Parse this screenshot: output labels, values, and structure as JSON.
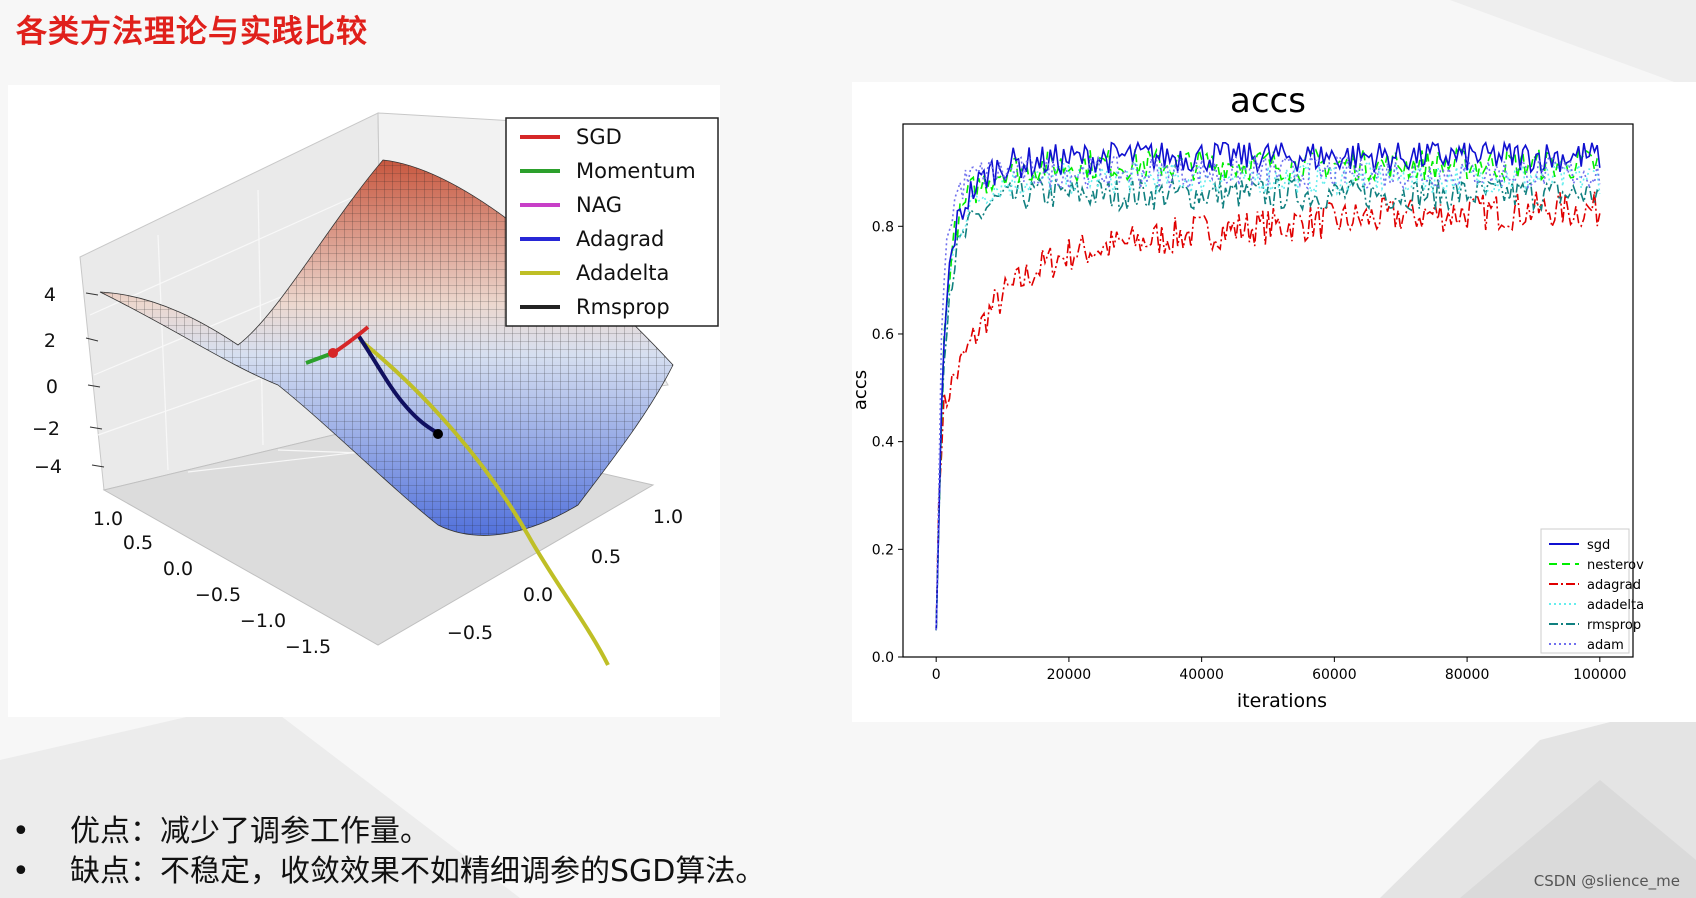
{
  "page": {
    "title": "各类方法理论与实践比较",
    "title_color": "#e0201b",
    "bullets": [
      {
        "marker": "•",
        "text": "优点：减少了调参工作量。"
      },
      {
        "marker": "•",
        "text": "缺点：不稳定，收敛效果不如精细调参的SGD算法。"
      }
    ],
    "watermark": "CSDN @slience_me"
  },
  "chart_data": [
    {
      "type": "surface3d",
      "zticks": [
        "4",
        "2",
        "0",
        "−2",
        "−4"
      ],
      "xticks": [
        "1.0",
        "0.5",
        "0.0",
        "−0.5",
        "−1.0",
        "−1.5"
      ],
      "yticks": [
        "1.0",
        "0.5",
        "0.0",
        "−0.5"
      ],
      "legend_position": "top-right",
      "series": [
        {
          "name": "SGD",
          "color": "#d62728"
        },
        {
          "name": "Momentum",
          "color": "#2ca02c"
        },
        {
          "name": "NAG",
          "color": "#c83fc8"
        },
        {
          "name": "Adagrad",
          "color": "#2727d6"
        },
        {
          "name": "Adadelta",
          "color": "#bfbf26"
        },
        {
          "name": "Rmsprop",
          "color": "#222222"
        }
      ],
      "surface_colors": {
        "high": "#c4492f",
        "mid": "#e6e2e0",
        "low": "#3c5fd8"
      }
    },
    {
      "type": "line",
      "title": "accs",
      "xlabel": "iterations",
      "ylabel": "accs",
      "xlim": [
        -5000,
        105000
      ],
      "ylim": [
        0,
        0.99
      ],
      "xticks": [
        0,
        20000,
        40000,
        60000,
        80000,
        100000
      ],
      "yticks": [
        0.0,
        0.2,
        0.4,
        0.6,
        0.8
      ],
      "grid": false,
      "legend_position": "lower-right",
      "series": [
        {
          "name": "sgd",
          "color": "#1010d0",
          "dash": "",
          "x": [
            0,
            1000,
            2000,
            3000,
            5000,
            8000,
            10000,
            15000,
            20000,
            30000,
            40000,
            60000,
            80000,
            100000
          ],
          "y": [
            0.05,
            0.55,
            0.72,
            0.8,
            0.86,
            0.9,
            0.915,
            0.92,
            0.925,
            0.93,
            0.93,
            0.93,
            0.93,
            0.93
          ]
        },
        {
          "name": "nesterov",
          "color": "#00ee00",
          "dash": "8 5",
          "x": [
            0,
            1000,
            2000,
            3000,
            5000,
            8000,
            10000,
            15000,
            20000,
            30000,
            40000,
            60000,
            80000,
            100000
          ],
          "y": [
            0.05,
            0.55,
            0.72,
            0.8,
            0.86,
            0.89,
            0.905,
            0.91,
            0.915,
            0.915,
            0.915,
            0.915,
            0.915,
            0.915
          ]
        },
        {
          "name": "adagrad",
          "color": "#e00000",
          "dash": "9 3 2 3",
          "x": [
            0,
            500,
            1000,
            2000,
            4000,
            6000,
            8000,
            10000,
            15000,
            20000,
            30000,
            40000,
            50000,
            60000,
            70000,
            80000,
            90000,
            100000
          ],
          "y": [
            0.05,
            0.35,
            0.45,
            0.5,
            0.55,
            0.6,
            0.64,
            0.67,
            0.72,
            0.75,
            0.77,
            0.79,
            0.8,
            0.81,
            0.82,
            0.825,
            0.83,
            0.83
          ]
        },
        {
          "name": "adadelta",
          "color": "#66eeee",
          "dash": "2 3",
          "x": [
            0,
            1000,
            2000,
            3000,
            5000,
            8000,
            10000,
            15000,
            20000,
            30000,
            40000,
            60000,
            80000,
            100000
          ],
          "y": [
            0.05,
            0.55,
            0.7,
            0.78,
            0.84,
            0.87,
            0.88,
            0.885,
            0.89,
            0.89,
            0.89,
            0.89,
            0.89,
            0.89
          ]
        },
        {
          "name": "rmsprop",
          "color": "#108080",
          "dash": "9 3 2 3",
          "x": [
            0,
            1000,
            2000,
            3000,
            5000,
            8000,
            10000,
            15000,
            20000,
            30000,
            40000,
            60000,
            80000,
            100000
          ],
          "y": [
            0.05,
            0.55,
            0.68,
            0.75,
            0.8,
            0.84,
            0.85,
            0.86,
            0.86,
            0.86,
            0.86,
            0.86,
            0.86,
            0.86
          ]
        },
        {
          "name": "adam",
          "color": "#7070ee",
          "dash": "2 3",
          "x": [
            0,
            1000,
            2000,
            3000,
            5000,
            8000,
            10000,
            15000,
            20000,
            30000,
            40000,
            60000,
            80000,
            100000
          ],
          "y": [
            0.05,
            0.7,
            0.8,
            0.86,
            0.89,
            0.9,
            0.9,
            0.9,
            0.9,
            0.9,
            0.9,
            0.9,
            0.9,
            0.9
          ]
        }
      ]
    }
  ]
}
